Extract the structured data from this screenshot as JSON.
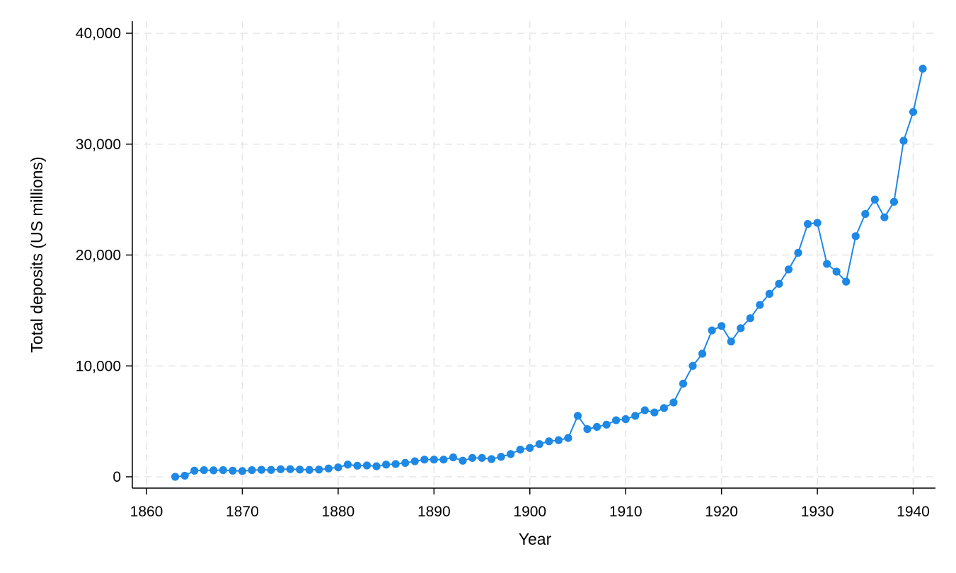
{
  "chart_data": {
    "type": "line",
    "title": "",
    "xlabel": "Year",
    "ylabel": "Total deposits (US millions)",
    "xlim": [
      1860,
      1942
    ],
    "ylim": [
      0,
      40000
    ],
    "x_ticks": [
      1860,
      1870,
      1880,
      1890,
      1900,
      1910,
      1920,
      1930,
      1940
    ],
    "x_tick_labels": [
      "1860",
      "1870",
      "1880",
      "1890",
      "1900",
      "1910",
      "1920",
      "1930",
      "1940"
    ],
    "y_ticks": [
      0,
      10000,
      20000,
      30000,
      40000
    ],
    "y_tick_labels": [
      "0",
      "10,000",
      "20,000",
      "30,000",
      "40,000"
    ],
    "grid": true,
    "legend": "none",
    "series": [
      {
        "color": "#1e88e5",
        "marker": "circle",
        "x": [
          1863,
          1864,
          1865,
          1866,
          1867,
          1868,
          1869,
          1870,
          1871,
          1872,
          1873,
          1874,
          1875,
          1876,
          1877,
          1878,
          1879,
          1880,
          1881,
          1882,
          1883,
          1884,
          1885,
          1886,
          1887,
          1888,
          1889,
          1890,
          1891,
          1892,
          1893,
          1894,
          1895,
          1896,
          1897,
          1898,
          1899,
          1900,
          1901,
          1902,
          1903,
          1904,
          1905,
          1906,
          1907,
          1908,
          1909,
          1910,
          1911,
          1912,
          1913,
          1914,
          1915,
          1916,
          1917,
          1918,
          1919,
          1920,
          1921,
          1922,
          1923,
          1924,
          1925,
          1926,
          1927,
          1928,
          1929,
          1930,
          1931,
          1932,
          1933,
          1934,
          1935,
          1936,
          1937,
          1938,
          1939,
          1940,
          1941
        ],
        "y": [
          0,
          100,
          550,
          600,
          580,
          600,
          550,
          520,
          600,
          630,
          620,
          680,
          690,
          650,
          620,
          650,
          750,
          850,
          1100,
          1000,
          1020,
          950,
          1100,
          1150,
          1250,
          1400,
          1550,
          1550,
          1550,
          1750,
          1450,
          1700,
          1700,
          1600,
          1800,
          2050,
          2450,
          2600,
          2950,
          3200,
          3300,
          3500,
          5500,
          4300,
          4500,
          4700,
          5100,
          5200,
          5500,
          6000,
          5800,
          6200,
          6700,
          8400,
          10000,
          11100,
          13200,
          13600,
          12200,
          13400,
          14300,
          15500,
          16500,
          17400,
          18700,
          20200,
          22800,
          22900,
          19200,
          18500,
          17600,
          21700,
          23700,
          25000,
          23400,
          24800,
          30300,
          32900,
          36800
        ]
      }
    ]
  }
}
